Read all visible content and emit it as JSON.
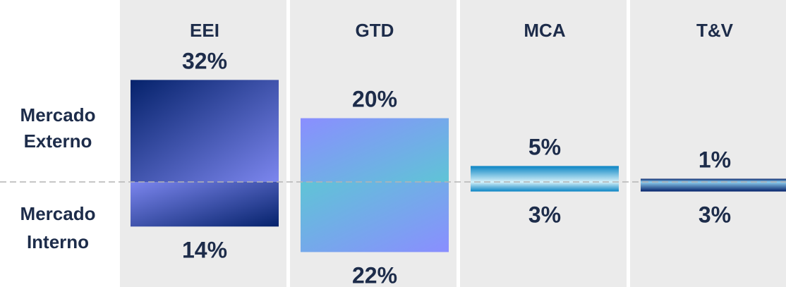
{
  "chart_data": {
    "type": "bar",
    "categories": [
      "EEI",
      "GTD",
      "MCA",
      "T&V"
    ],
    "series": [
      {
        "name": "Mercado Externo",
        "values": [
          32,
          20,
          5,
          1
        ]
      },
      {
        "name": "Mercado Interno",
        "values": [
          14,
          22,
          3,
          3
        ]
      }
    ],
    "value_labels": {
      "externo": [
        "32%",
        "20%",
        "5%",
        "1%"
      ],
      "interno": [
        "14%",
        "22%",
        "3%",
        "3%"
      ]
    },
    "row_labels": {
      "externo": [
        "Mercado",
        "Externo"
      ],
      "interno": [
        "Mercado",
        "Interno"
      ]
    },
    "unit": "%",
    "colors": {
      "panel_background": "#ebebeb",
      "text": "#1d2c4a",
      "baseline": "#b4b4b4",
      "EEI": [
        "#05226b",
        "#7c86ee"
      ],
      "GTD": [
        "#8a8eff",
        "#5fc4d6"
      ],
      "MCA": [
        "#0a84c4",
        "#d6f2fa"
      ],
      "T&V": [
        "#05226b",
        "#8fd0f0"
      ]
    }
  }
}
